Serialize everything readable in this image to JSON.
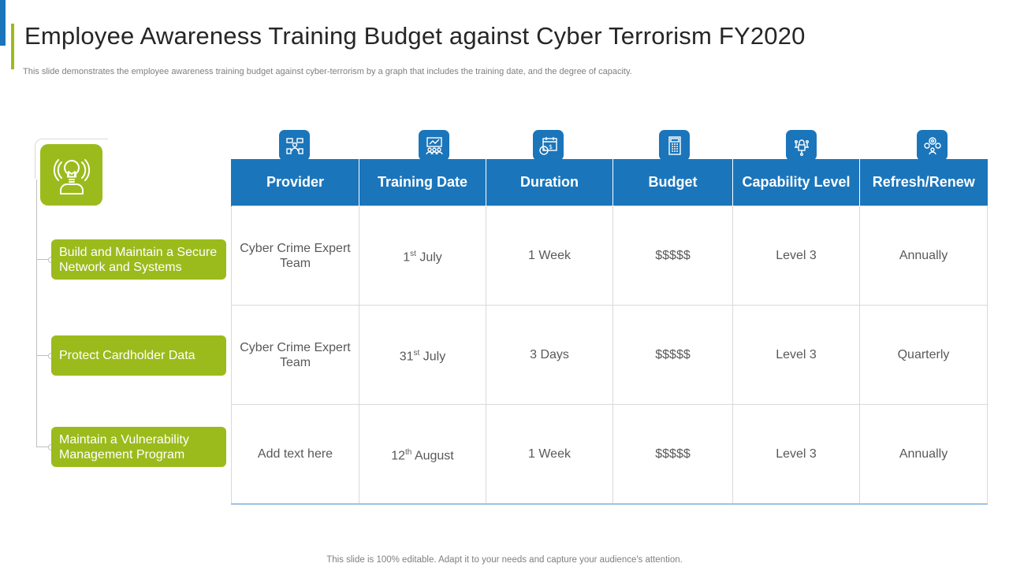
{
  "header": {
    "title": "Employee Awareness Training Budget against Cyber Terrorism FY2020",
    "subtitle": "This slide demonstrates the employee awareness training budget against cyber-terrorism by a graph that includes the training date, and the degree of capacity."
  },
  "sidebar": {
    "icon": "lightbulb-person-icon",
    "items": [
      {
        "label": "Build and Maintain a Secure Network and Systems"
      },
      {
        "label": "Protect Cardholder Data"
      },
      {
        "label": "Maintain a Vulnerability Management Program"
      }
    ]
  },
  "table": {
    "columns": [
      {
        "label": "Provider",
        "icon": "team-management-icon"
      },
      {
        "label": "Training Date",
        "icon": "presentation-audience-icon"
      },
      {
        "label": "Duration",
        "icon": "calendar-clock-icon"
      },
      {
        "label": "Budget",
        "icon": "calculator-document-icon"
      },
      {
        "label": "Capability Level",
        "icon": "circuit-lock-icon"
      },
      {
        "label": "Refresh/Renew",
        "icon": "gears-person-icon"
      }
    ],
    "rows": [
      {
        "provider": "Cyber Crime Expert Team",
        "date_day": "1",
        "date_suffix": "st",
        "date_month": " July",
        "duration": "1 Week",
        "budget": "$$$$$",
        "capability": "Level 3",
        "refresh": "Annually"
      },
      {
        "provider": "Cyber Crime Expert Team",
        "date_day": "31",
        "date_suffix": "st",
        "date_month": " July",
        "duration": "3 Days",
        "budget": "$$$$$",
        "capability": "Level 3",
        "refresh": "Quarterly"
      },
      {
        "provider": "Add text here",
        "date_day": "12",
        "date_suffix": "th",
        "date_month": " August",
        "duration": "1 Week",
        "budget": "$$$$$",
        "capability": "Level 3",
        "refresh": "Annually"
      }
    ]
  },
  "footer": {
    "note": "This slide is 100% editable. Adapt it to your needs and capture your audience's attention."
  },
  "colors": {
    "blue": "#1b75bb",
    "green": "#9bbb1c"
  }
}
